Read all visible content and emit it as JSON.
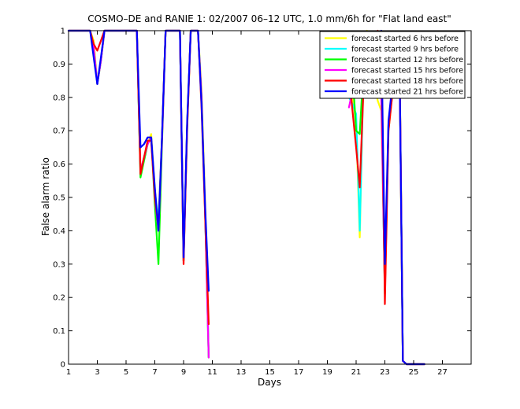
{
  "chart_data": {
    "type": "line",
    "title": "COSMO–DE and RANIE 1: 02/2007 06–12 UTC, 1.0 mm/6h for \"Flat land east\"",
    "xlabel": "Days",
    "ylabel": "False alarm ratio",
    "xlim": [
      1,
      29
    ],
    "ylim": [
      0,
      1
    ],
    "x_ticks": [
      1,
      3,
      5,
      7,
      9,
      11,
      13,
      15,
      17,
      19,
      21,
      23,
      25,
      27
    ],
    "y_ticks": [
      0,
      0.1,
      0.2,
      0.3,
      0.4,
      0.5,
      0.6,
      0.7,
      0.8,
      0.9,
      1
    ],
    "y_tick_labels": [
      "0",
      "0.1",
      "0.2",
      "0.3",
      "0.4",
      "0.5",
      "0.6",
      "0.7",
      "0.8",
      "0.9",
      "1"
    ],
    "x_step_days": 0.25,
    "x_offset_days": 1,
    "legend_position": "top-right",
    "grid": false,
    "series": [
      {
        "name": "forecast started 6 hrs before",
        "color": "#ffff00",
        "y": [
          1,
          1,
          1,
          1,
          1,
          1,
          1,
          0.97,
          0.84,
          0.91,
          1,
          1,
          1,
          1,
          1,
          1,
          1,
          1,
          1,
          1,
          0.58,
          0.62,
          0.66,
          0.69,
          0.52,
          0.41,
          0.67,
          1,
          1,
          1,
          1,
          1,
          0.31,
          0.71,
          1,
          1,
          1,
          0.82,
          0.48,
          0.02,
          null,
          null,
          null,
          null,
          null,
          null,
          null,
          null,
          null,
          null,
          null,
          null,
          null,
          null,
          null,
          null,
          null,
          null,
          null,
          null,
          null,
          null,
          null,
          null,
          null,
          null,
          null,
          null,
          null,
          null,
          null,
          null,
          null,
          null,
          null,
          null,
          null,
          null,
          0.86,
          0.81,
          0.72,
          0.38,
          0.85,
          1,
          0.93,
          0.85,
          0.79,
          0.76,
          0.24,
          0.7,
          0.8,
          0.89,
          0.99,
          0.01,
          0,
          0,
          0,
          0,
          0,
          0,
          null,
          null,
          null,
          null,
          null,
          null,
          null,
          null,
          null
        ]
      },
      {
        "name": "forecast started 9 hrs before",
        "color": "#00ffff",
        "y": [
          1,
          1,
          1,
          1,
          1,
          1,
          1,
          0.95,
          0.84,
          0.91,
          1,
          1,
          1,
          1,
          1,
          1,
          1,
          1,
          1,
          1,
          0.57,
          0.62,
          0.66,
          0.68,
          0.52,
          0.43,
          0.68,
          1,
          1,
          1,
          1,
          1,
          0.31,
          0.72,
          1,
          1,
          1,
          0.8,
          0.45,
          0.02,
          null,
          null,
          null,
          null,
          null,
          null,
          null,
          null,
          null,
          null,
          null,
          null,
          null,
          null,
          null,
          null,
          null,
          null,
          null,
          null,
          null,
          null,
          null,
          null,
          null,
          null,
          null,
          null,
          null,
          null,
          null,
          null,
          null,
          null,
          null,
          null,
          null,
          null,
          0.8,
          0.78,
          0.75,
          0.4,
          0.84,
          0.97,
          0.92,
          0.88,
          0.83,
          0.8,
          0.22,
          0.72,
          0.81,
          0.89,
          0.99,
          0.01,
          0,
          0,
          0,
          0,
          0,
          0,
          null,
          null,
          null,
          null,
          null,
          null,
          null,
          null,
          null
        ]
      },
      {
        "name": "forecast started 12 hrs before",
        "color": "#00ff00",
        "y": [
          1,
          1,
          1,
          1,
          1,
          1,
          1,
          0.95,
          0.84,
          0.91,
          1,
          1,
          1,
          1,
          1,
          1,
          1,
          1,
          1,
          1,
          0.56,
          0.61,
          0.66,
          0.68,
          0.48,
          0.3,
          0.66,
          1,
          1,
          1,
          1,
          1,
          0.31,
          0.72,
          1,
          1,
          1,
          0.8,
          0.45,
          0.02,
          null,
          null,
          null,
          null,
          null,
          null,
          null,
          null,
          null,
          null,
          null,
          null,
          null,
          null,
          null,
          null,
          null,
          null,
          null,
          null,
          null,
          null,
          null,
          null,
          null,
          null,
          null,
          null,
          null,
          null,
          null,
          null,
          null,
          null,
          null,
          null,
          null,
          null,
          0.96,
          0.88,
          0.7,
          0.69,
          0.88,
          0.97,
          0.94,
          0.9,
          0.87,
          0.84,
          0.21,
          0.72,
          0.81,
          0.89,
          0.99,
          0.01,
          0,
          0,
          0,
          0,
          0,
          0,
          null,
          null,
          null,
          null,
          null,
          null,
          null,
          null,
          null
        ]
      },
      {
        "name": "forecast started 15 hrs before",
        "color": "#ff00ff",
        "y": [
          1,
          1,
          1,
          1,
          1,
          1,
          1,
          0.95,
          0.84,
          0.91,
          1,
          1,
          1,
          1,
          1,
          1,
          1,
          1,
          1,
          1,
          0.58,
          0.62,
          0.66,
          0.68,
          0.5,
          0.4,
          0.67,
          1,
          1,
          1,
          1,
          1,
          0.31,
          0.72,
          1,
          1,
          1,
          0.8,
          0.45,
          0.02,
          null,
          null,
          null,
          null,
          null,
          null,
          null,
          null,
          null,
          null,
          null,
          null,
          null,
          null,
          null,
          null,
          null,
          null,
          null,
          null,
          null,
          null,
          null,
          null,
          null,
          null,
          null,
          null,
          null,
          null,
          null,
          null,
          null,
          null,
          null,
          null,
          null,
          null,
          0.77,
          0.82,
          0.86,
          0.89,
          0.94,
          0.97,
          0.93,
          0.85,
          0.83,
          0.81,
          0.22,
          0.72,
          0.81,
          0.89,
          0.99,
          0.01,
          0,
          0,
          0,
          0,
          0,
          0,
          null,
          null,
          null,
          null,
          null,
          null,
          null,
          null,
          null
        ]
      },
      {
        "name": "forecast started 18 hrs before",
        "color": "#ff0000",
        "y": [
          1,
          1,
          1,
          1,
          1,
          1,
          1,
          0.96,
          0.94,
          0.97,
          1,
          1,
          1,
          1,
          1,
          1,
          1,
          1,
          1,
          1,
          0.57,
          0.62,
          0.67,
          0.67,
          0.5,
          0.41,
          0.68,
          1,
          1,
          1,
          1,
          1,
          0.3,
          0.71,
          1,
          1,
          1,
          0.77,
          0.44,
          0.12,
          null,
          null,
          null,
          null,
          null,
          null,
          null,
          null,
          null,
          null,
          null,
          null,
          null,
          null,
          null,
          null,
          null,
          null,
          null,
          null,
          null,
          null,
          null,
          null,
          null,
          null,
          null,
          null,
          null,
          null,
          null,
          null,
          null,
          null,
          null,
          null,
          null,
          null,
          0.87,
          0.76,
          0.65,
          0.53,
          0.81,
          0.98,
          0.99,
          0.99,
          1,
          0.99,
          0.18,
          0.7,
          0.8,
          0.89,
          0.99,
          0.01,
          0,
          0,
          0,
          0,
          0,
          0,
          null,
          null,
          null,
          null,
          null,
          null,
          null,
          null,
          null
        ]
      },
      {
        "name": "forecast started 21 hrs before",
        "color": "#0000ff",
        "y": [
          1,
          1,
          1,
          1,
          1,
          1,
          1,
          0.92,
          0.84,
          0.92,
          1,
          1,
          1,
          1,
          1,
          1,
          1,
          1,
          1,
          1,
          0.65,
          0.66,
          0.68,
          0.68,
          0.53,
          0.4,
          0.68,
          1,
          1,
          1,
          1,
          1,
          0.32,
          0.73,
          1,
          1,
          1,
          0.78,
          0.47,
          0.22,
          null,
          null,
          null,
          null,
          null,
          null,
          null,
          null,
          null,
          null,
          null,
          null,
          null,
          null,
          null,
          null,
          null,
          null,
          null,
          null,
          null,
          null,
          null,
          null,
          null,
          null,
          null,
          null,
          null,
          null,
          null,
          null,
          null,
          null,
          null,
          null,
          null,
          null,
          null,
          null,
          null,
          0.8,
          0.88,
          0.96,
          0.95,
          0.93,
          0.97,
          1,
          0.3,
          0.73,
          0.83,
          0.9,
          0.98,
          0.01,
          0,
          0,
          0,
          0,
          0,
          0,
          null,
          null,
          null,
          null,
          null,
          null,
          null,
          null,
          null
        ]
      }
    ]
  }
}
